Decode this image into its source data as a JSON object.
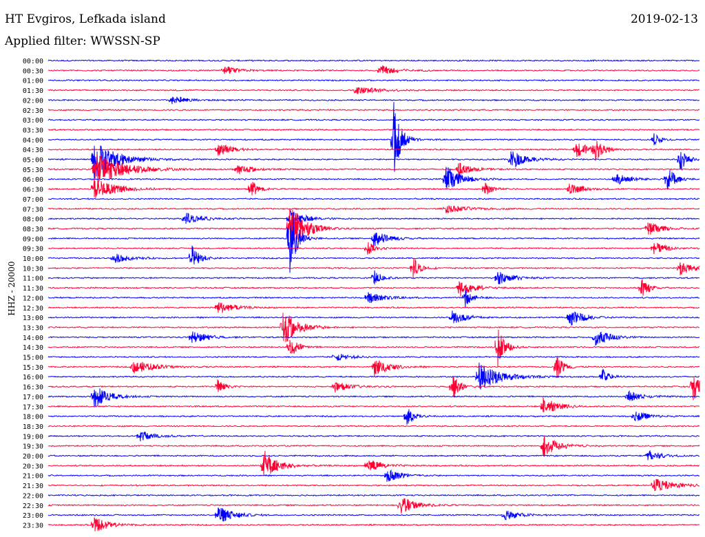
{
  "header": {
    "station": "HT Evgiros, Lefkada island",
    "date": "2019-02-13",
    "filter_label": "Applied filter: WWSSN-SP"
  },
  "axis": {
    "ylabel": "HHZ - 20000"
  },
  "chart_data": {
    "type": "line",
    "title": "HT Evgiros, Lefkada island",
    "ylabel": "HHZ - 20000",
    "colors": [
      "#0000ff",
      "#ff0033"
    ],
    "tick_labels": [
      "00:00",
      "00:30",
      "01:00",
      "01:30",
      "02:00",
      "02:30",
      "03:00",
      "03:30",
      "04:00",
      "04:30",
      "05:00",
      "05:30",
      "06:00",
      "06:30",
      "07:00",
      "07:30",
      "08:00",
      "08:30",
      "09:00",
      "09:30",
      "10:00",
      "10:30",
      "11:00",
      "11:30",
      "12:00",
      "12:30",
      "13:00",
      "13:30",
      "14:00",
      "14:30",
      "15:00",
      "15:30",
      "16:00",
      "16:30",
      "17:00",
      "17:30",
      "18:00",
      "18:30",
      "19:00",
      "19:30",
      "20:00",
      "20:30",
      "21:00",
      "21:30",
      "22:00",
      "22:30",
      "23:00",
      "23:30"
    ],
    "events": [
      [
        1,
        0.51,
        8,
        0.02
      ],
      [
        1,
        0.27,
        6,
        0.02
      ],
      [
        3,
        0.47,
        6,
        0.03
      ],
      [
        4,
        0.19,
        7,
        0.02
      ],
      [
        8,
        0.53,
        60,
        0.01
      ],
      [
        8,
        0.93,
        9,
        0.01
      ],
      [
        9,
        0.26,
        10,
        0.02
      ],
      [
        9,
        0.81,
        12,
        0.02
      ],
      [
        9,
        0.84,
        14,
        0.01
      ],
      [
        10,
        0.07,
        30,
        0.03
      ],
      [
        10,
        0.71,
        14,
        0.02
      ],
      [
        10,
        0.97,
        18,
        0.01
      ],
      [
        11,
        0.07,
        26,
        0.04
      ],
      [
        11,
        0.29,
        8,
        0.02
      ],
      [
        11,
        0.63,
        9,
        0.02
      ],
      [
        12,
        0.61,
        20,
        0.02
      ],
      [
        12,
        0.87,
        10,
        0.02
      ],
      [
        12,
        0.95,
        22,
        0.01
      ],
      [
        13,
        0.07,
        16,
        0.03
      ],
      [
        13,
        0.31,
        16,
        0.01
      ],
      [
        13,
        0.67,
        12,
        0.01
      ],
      [
        13,
        0.8,
        8,
        0.02
      ],
      [
        15,
        0.61,
        6,
        0.03
      ],
      [
        16,
        0.21,
        10,
        0.02
      ],
      [
        16,
        0.37,
        14,
        0.02
      ],
      [
        17,
        0.37,
        40,
        0.02
      ],
      [
        17,
        0.92,
        10,
        0.02
      ],
      [
        18,
        0.37,
        60,
        0.01
      ],
      [
        18,
        0.5,
        12,
        0.02
      ],
      [
        19,
        0.49,
        12,
        0.01
      ],
      [
        19,
        0.93,
        8,
        0.02
      ],
      [
        20,
        0.1,
        8,
        0.02
      ],
      [
        20,
        0.22,
        20,
        0.01
      ],
      [
        21,
        0.56,
        18,
        0.01
      ],
      [
        21,
        0.97,
        10,
        0.02
      ],
      [
        22,
        0.5,
        12,
        0.01
      ],
      [
        22,
        0.69,
        10,
        0.02
      ],
      [
        23,
        0.63,
        14,
        0.02
      ],
      [
        23,
        0.91,
        18,
        0.01
      ],
      [
        24,
        0.49,
        10,
        0.02
      ],
      [
        24,
        0.64,
        14,
        0.01
      ],
      [
        25,
        0.26,
        10,
        0.02
      ],
      [
        26,
        0.62,
        10,
        0.02
      ],
      [
        26,
        0.8,
        12,
        0.02
      ],
      [
        27,
        0.36,
        28,
        0.02
      ],
      [
        28,
        0.22,
        10,
        0.02
      ],
      [
        28,
        0.84,
        12,
        0.02
      ],
      [
        29,
        0.37,
        20,
        0.01
      ],
      [
        29,
        0.69,
        30,
        0.01
      ],
      [
        30,
        0.44,
        6,
        0.02
      ],
      [
        31,
        0.13,
        10,
        0.03
      ],
      [
        31,
        0.5,
        14,
        0.02
      ],
      [
        31,
        0.78,
        20,
        0.01
      ],
      [
        32,
        0.66,
        22,
        0.03
      ],
      [
        32,
        0.85,
        12,
        0.01
      ],
      [
        33,
        0.26,
        10,
        0.01
      ],
      [
        33,
        0.44,
        8,
        0.02
      ],
      [
        33,
        0.62,
        20,
        0.01
      ],
      [
        33,
        0.99,
        22,
        0.01
      ],
      [
        34,
        0.07,
        18,
        0.02
      ],
      [
        34,
        0.89,
        8,
        0.02
      ],
      [
        35,
        0.76,
        14,
        0.02
      ],
      [
        36,
        0.55,
        14,
        0.01
      ],
      [
        36,
        0.9,
        8,
        0.02
      ],
      [
        38,
        0.14,
        8,
        0.02
      ],
      [
        39,
        0.76,
        16,
        0.02
      ],
      [
        40,
        0.92,
        8,
        0.02
      ],
      [
        41,
        0.33,
        24,
        0.02
      ],
      [
        41,
        0.49,
        10,
        0.02
      ],
      [
        42,
        0.52,
        10,
        0.02
      ],
      [
        43,
        0.93,
        10,
        0.03
      ],
      [
        45,
        0.54,
        14,
        0.02
      ],
      [
        46,
        0.26,
        14,
        0.02
      ],
      [
        46,
        0.7,
        8,
        0.02
      ],
      [
        47,
        0.07,
        12,
        0.02
      ]
    ]
  }
}
